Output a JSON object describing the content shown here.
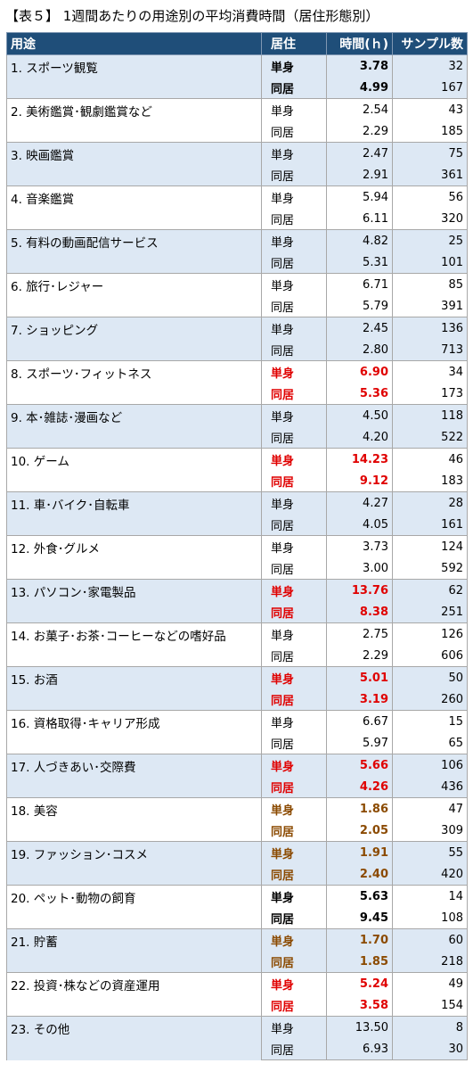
{
  "title": "【表５】 1週間あたりの用途別の平均消費時間（居住形態別）",
  "headers": {
    "usage": "用途",
    "residence": "居住",
    "hours": "時間(ｈ)",
    "sample": "サンプル数"
  },
  "rows": [
    {
      "usage": "1. スポーツ観覧",
      "style": "black",
      "single": {
        "label": "単身",
        "hours": "3.78",
        "n": "32"
      },
      "shared": {
        "label": "同居",
        "hours": "4.99",
        "n": "167"
      }
    },
    {
      "usage": "2. 美術鑑賞･観劇鑑賞など",
      "style": "normal",
      "single": {
        "label": "単身",
        "hours": "2.54",
        "n": "43"
      },
      "shared": {
        "label": "同居",
        "hours": "2.29",
        "n": "185"
      }
    },
    {
      "usage": "3. 映画鑑賞",
      "style": "normal",
      "single": {
        "label": "単身",
        "hours": "2.47",
        "n": "75"
      },
      "shared": {
        "label": "同居",
        "hours": "2.91",
        "n": "361"
      }
    },
    {
      "usage": "4. 音楽鑑賞",
      "style": "normal",
      "single": {
        "label": "単身",
        "hours": "5.94",
        "n": "56"
      },
      "shared": {
        "label": "同居",
        "hours": "6.11",
        "n": "320"
      }
    },
    {
      "usage": "5. 有料の動画配信サービス",
      "style": "normal",
      "single": {
        "label": "単身",
        "hours": "4.82",
        "n": "25"
      },
      "shared": {
        "label": "同居",
        "hours": "5.31",
        "n": "101"
      }
    },
    {
      "usage": "6. 旅行･レジャー",
      "style": "normal",
      "single": {
        "label": "単身",
        "hours": "6.71",
        "n": "85"
      },
      "shared": {
        "label": "同居",
        "hours": "5.79",
        "n": "391"
      }
    },
    {
      "usage": "7. ショッピング",
      "style": "normal",
      "single": {
        "label": "単身",
        "hours": "2.45",
        "n": "136"
      },
      "shared": {
        "label": "同居",
        "hours": "2.80",
        "n": "713"
      }
    },
    {
      "usage": "8. スポーツ･フィットネス",
      "style": "red",
      "single": {
        "label": "単身",
        "hours": "6.90",
        "n": "34"
      },
      "shared": {
        "label": "同居",
        "hours": "5.36",
        "n": "173"
      }
    },
    {
      "usage": "9. 本･雑誌･漫画など",
      "style": "normal",
      "single": {
        "label": "単身",
        "hours": "4.50",
        "n": "118"
      },
      "shared": {
        "label": "同居",
        "hours": "4.20",
        "n": "522"
      }
    },
    {
      "usage": "10. ゲーム",
      "style": "red",
      "single": {
        "label": "単身",
        "hours": "14.23",
        "n": "46"
      },
      "shared": {
        "label": "同居",
        "hours": "9.12",
        "n": "183"
      }
    },
    {
      "usage": "11. 車･バイク･自転車",
      "style": "normal",
      "single": {
        "label": "単身",
        "hours": "4.27",
        "n": "28"
      },
      "shared": {
        "label": "同居",
        "hours": "4.05",
        "n": "161"
      }
    },
    {
      "usage": "12. 外食･グルメ",
      "style": "normal",
      "single": {
        "label": "単身",
        "hours": "3.73",
        "n": "124"
      },
      "shared": {
        "label": "同居",
        "hours": "3.00",
        "n": "592"
      }
    },
    {
      "usage": "13. パソコン･家電製品",
      "style": "red",
      "single": {
        "label": "単身",
        "hours": "13.76",
        "n": "62"
      },
      "shared": {
        "label": "同居",
        "hours": "8.38",
        "n": "251"
      }
    },
    {
      "usage": "14. お菓子･お茶･コーヒーなどの嗜好品",
      "style": "normal",
      "single": {
        "label": "単身",
        "hours": "2.75",
        "n": "126"
      },
      "shared": {
        "label": "同居",
        "hours": "2.29",
        "n": "606"
      }
    },
    {
      "usage": "15. お酒",
      "style": "red",
      "single": {
        "label": "単身",
        "hours": "5.01",
        "n": "50"
      },
      "shared": {
        "label": "同居",
        "hours": "3.19",
        "n": "260"
      }
    },
    {
      "usage": "16. 資格取得･キャリア形成",
      "style": "normal",
      "single": {
        "label": "単身",
        "hours": "6.67",
        "n": "15"
      },
      "shared": {
        "label": "同居",
        "hours": "5.97",
        "n": "65"
      }
    },
    {
      "usage": "17. 人づきあい･交際費",
      "style": "red",
      "single": {
        "label": "単身",
        "hours": "5.66",
        "n": "106"
      },
      "shared": {
        "label": "同居",
        "hours": "4.26",
        "n": "436"
      }
    },
    {
      "usage": "18. 美容",
      "style": "brown",
      "single": {
        "label": "単身",
        "hours": "1.86",
        "n": "47"
      },
      "shared": {
        "label": "同居",
        "hours": "2.05",
        "n": "309"
      }
    },
    {
      "usage": "19. ファッション･コスメ",
      "style": "brown",
      "single": {
        "label": "単身",
        "hours": "1.91",
        "n": "55"
      },
      "shared": {
        "label": "同居",
        "hours": "2.40",
        "n": "420"
      }
    },
    {
      "usage": "20. ペット･動物の飼育",
      "style": "black",
      "single": {
        "label": "単身",
        "hours": "5.63",
        "n": "14"
      },
      "shared": {
        "label": "同居",
        "hours": "9.45",
        "n": "108"
      }
    },
    {
      "usage": "21. 貯蓄",
      "style": "brown",
      "single": {
        "label": "単身",
        "hours": "1.70",
        "n": "60"
      },
      "shared": {
        "label": "同居",
        "hours": "1.85",
        "n": "218"
      }
    },
    {
      "usage": "22. 投資･株などの資産運用",
      "style": "red",
      "single": {
        "label": "単身",
        "hours": "5.24",
        "n": "49"
      },
      "shared": {
        "label": "同居",
        "hours": "3.58",
        "n": "154"
      }
    },
    {
      "usage": "23. その他",
      "style": "normal",
      "single": {
        "label": "単身",
        "hours": "13.50",
        "n": "8"
      },
      "shared": {
        "label": "同居",
        "hours": "6.93",
        "n": "30"
      }
    }
  ],
  "colors": {
    "header_bg": "#1f4e79",
    "shade_bg": "#dde8f4",
    "highlight_red": "#e00000",
    "highlight_brown": "#8b4a00"
  }
}
